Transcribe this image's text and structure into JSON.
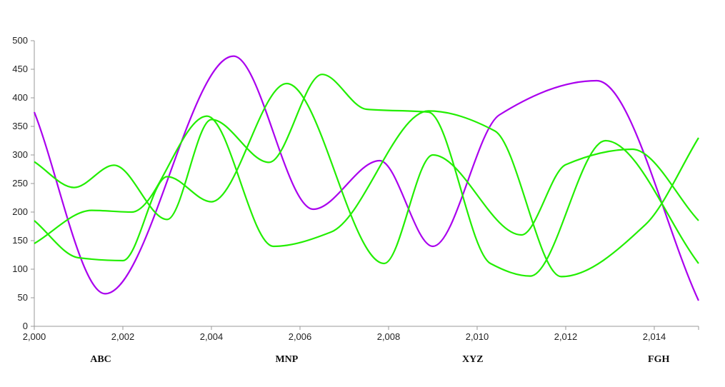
{
  "chart_data": {
    "type": "line",
    "title": "",
    "xlabel": "",
    "ylabel": "",
    "xlim": [
      2000,
      2015
    ],
    "ylim": [
      0,
      500
    ],
    "x_ticks": [
      2000,
      2002,
      2004,
      2006,
      2008,
      2010,
      2012,
      2014
    ],
    "x_tick_labels": [
      "2,000",
      "2,002",
      "2,004",
      "2,006",
      "2,008",
      "2,010",
      "2,012",
      "2,014"
    ],
    "y_ticks": [
      0,
      50,
      100,
      150,
      200,
      250,
      300,
      350,
      400,
      450,
      500
    ],
    "y_tick_labels": [
      "0",
      "50",
      "100",
      "150",
      "200",
      "250",
      "300",
      "350",
      "400",
      "450",
      "500"
    ],
    "category_labels": [
      {
        "text": "ABC",
        "x": 2001.5
      },
      {
        "text": "MNP",
        "x": 2005.7
      },
      {
        "text": "XYZ",
        "x": 2009.9
      },
      {
        "text": "FGH",
        "x": 2014.1
      }
    ],
    "grid": false,
    "legend": "none",
    "series": [
      {
        "color": "#aa00ee",
        "x": [
          2000,
          2001.6,
          2004.5,
          2006.3,
          2007.8,
          2009,
          2010.5,
          2012.7,
          2015
        ],
        "y": [
          375,
          57,
          473,
          205,
          290,
          140,
          370,
          430,
          45
        ]
      },
      {
        "color": "#22ee00",
        "x": [
          2000,
          2000.9,
          2001.8,
          2003,
          2004,
          2005.3,
          2006.5,
          2007.5,
          2008.9,
          2010.3,
          2011.2,
          2012.9,
          2015
        ],
        "y": [
          288,
          243,
          282,
          187,
          362,
          287,
          441,
          380,
          375,
          110,
          88,
          325,
          110
        ]
      },
      {
        "color": "#22ee00",
        "x": [
          2000,
          2001,
          2002,
          2003,
          2004,
          2005.7,
          2007.9,
          2009,
          2011,
          2012,
          2013.5,
          2015
        ],
        "y": [
          185,
          120,
          115,
          262,
          218,
          425,
          110,
          300,
          160,
          283,
          310,
          185
        ]
      },
      {
        "color": "#22ee00",
        "x": [
          2000,
          2001.3,
          2002.2,
          2003.9,
          2005.4,
          2006.7,
          2008.9,
          2010.4,
          2011.9,
          2013.8,
          2015
        ],
        "y": [
          145,
          203,
          200,
          368,
          140,
          165,
          377,
          342,
          87,
          178,
          330
        ]
      }
    ]
  }
}
